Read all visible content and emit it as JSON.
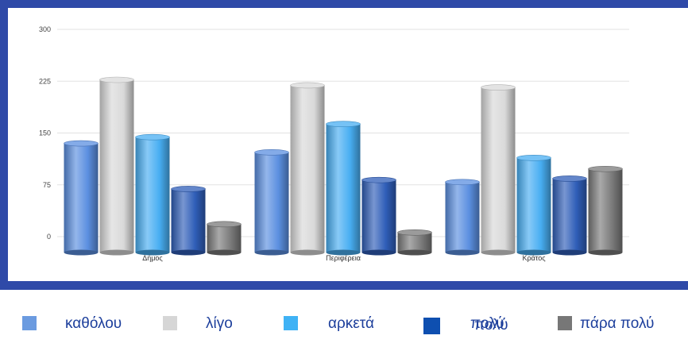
{
  "chart_data": {
    "type": "bar",
    "style": "3d-cylinder",
    "categories": [
      "Δήμος",
      "Περιφέρεια",
      "Κράτος"
    ],
    "yticks": [
      "0",
      "75",
      "150",
      "225",
      "300"
    ],
    "ylim": [
      0,
      300
    ],
    "grid": true,
    "legend_position": "bottom",
    "series": [
      {
        "name": "καθόλου",
        "color": "#5b8fe0",
        "values": [
          135,
          122,
          79
        ]
      },
      {
        "name": "λίγο",
        "color": "#d9d9d9",
        "values": [
          227,
          219,
          216
        ]
      },
      {
        "name": "αρκετά",
        "color": "#48aef2",
        "values": [
          144,
          163,
          114
        ]
      },
      {
        "name": "πολύ",
        "color": "#2f5eb8",
        "values": [
          69,
          82,
          84
        ]
      },
      {
        "name": "πάρα πολύ",
        "color": "#7a7a7a",
        "values": [
          18,
          6,
          98
        ]
      }
    ]
  },
  "legend": {
    "items": [
      {
        "label": "καθόλου",
        "swatch_color": "#6b9be0"
      },
      {
        "label": "λίγο",
        "swatch_color": "#d6d6d6"
      },
      {
        "label": "αρκετά",
        "swatch_color": "#3fb2f5"
      },
      {
        "label": "πολύ",
        "swatch_color": "#0e4fb0",
        "overlap_label": "πολύ"
      },
      {
        "label": "πάρα πολύ",
        "swatch_color": "#777777"
      }
    ]
  }
}
